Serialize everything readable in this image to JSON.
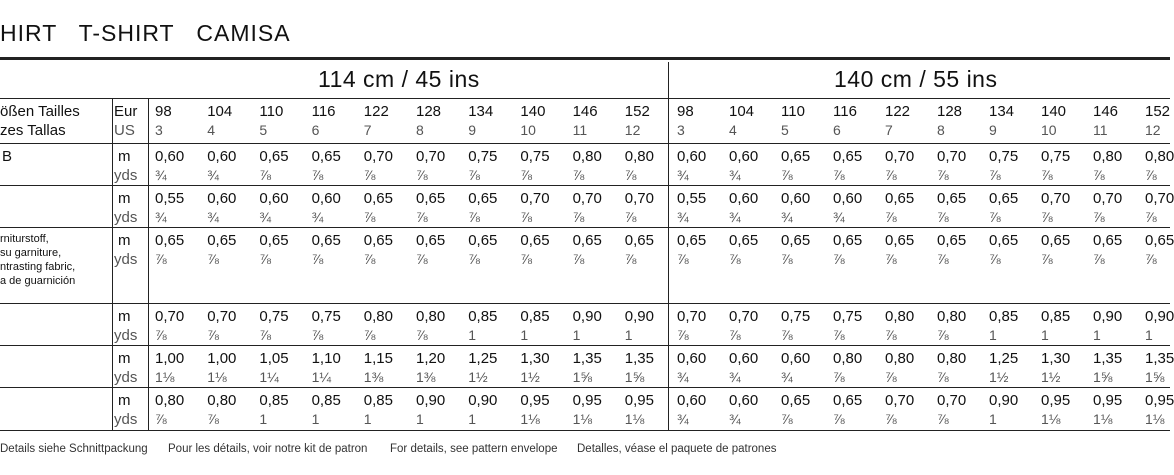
{
  "header": {
    "title": "HIRT   T-SHIRT   CAMISA"
  },
  "table": {
    "groups": [
      "114 cm / 45 ins",
      "140 cm / 55 ins"
    ],
    "size_label": [
      "ößen Tailles",
      "zes Tallas"
    ],
    "size_units": [
      "Eur",
      "US"
    ],
    "eur": [
      "98",
      "104",
      "110",
      "116",
      "122",
      "128",
      "134",
      "140",
      "146",
      "152",
      "98",
      "104",
      "110",
      "116",
      "122",
      "128",
      "134",
      "140",
      "146",
      "152"
    ],
    "us": [
      "3",
      "4",
      "5",
      "6",
      "7",
      "8",
      "9",
      "10",
      "11",
      "12",
      "3",
      "4",
      "5",
      "6",
      "7",
      "8",
      "9",
      "10",
      "11",
      "12"
    ],
    "rows": [
      {
        "label": [
          "B"
        ],
        "units": [
          "m",
          "yds"
        ],
        "values": [
          [
            "0,60",
            "0,60",
            "0,65",
            "0,65",
            "0,70",
            "0,70",
            "0,75",
            "0,75",
            "0,80",
            "0,80",
            "0,60",
            "0,60",
            "0,65",
            "0,65",
            "0,70",
            "0,70",
            "0,75",
            "0,75",
            "0,80",
            "0,80"
          ],
          [
            "¾",
            "¾",
            "⅞",
            "⅞",
            "⅞",
            "⅞",
            "⅞",
            "⅞",
            "⅞",
            "⅞",
            "¾",
            "¾",
            "⅞",
            "⅞",
            "⅞",
            "⅞",
            "⅞",
            "⅞",
            "⅞",
            "⅞"
          ]
        ]
      },
      {
        "label": [],
        "units": [
          "m",
          "yds"
        ],
        "values": [
          [
            "0,55",
            "0,60",
            "0,60",
            "0,60",
            "0,65",
            "0,65",
            "0,65",
            "0,70",
            "0,70",
            "0,70",
            "0,55",
            "0,60",
            "0,60",
            "0,60",
            "0,65",
            "0,65",
            "0,65",
            "0,70",
            "0,70",
            "0,70"
          ],
          [
            "¾",
            "¾",
            "¾",
            "¾",
            "⅞",
            "⅞",
            "⅞",
            "⅞",
            "⅞",
            "⅞",
            "¾",
            "¾",
            "¾",
            "¾",
            "⅞",
            "⅞",
            "⅞",
            "⅞",
            "⅞",
            "⅞"
          ]
        ]
      },
      {
        "label": [
          "rniturstoff,",
          "su garniture,",
          "ntrasting fabric,",
          "a de guarnición"
        ],
        "units": [
          "m",
          "yds"
        ],
        "values": [
          [
            "0,65",
            "0,65",
            "0,65",
            "0,65",
            "0,65",
            "0,65",
            "0,65",
            "0,65",
            "0,65",
            "0,65",
            "0,65",
            "0,65",
            "0,65",
            "0,65",
            "0,65",
            "0,65",
            "0,65",
            "0,65",
            "0,65",
            "0,65"
          ],
          [
            "⅞",
            "⅞",
            "⅞",
            "⅞",
            "⅞",
            "⅞",
            "⅞",
            "⅞",
            "⅞",
            "⅞",
            "⅞",
            "⅞",
            "⅞",
            "⅞",
            "⅞",
            "⅞",
            "⅞",
            "⅞",
            "⅞",
            "⅞"
          ]
        ]
      },
      {
        "label": [],
        "units": [
          "m",
          "yds"
        ],
        "values": [
          [
            "0,70",
            "0,70",
            "0,75",
            "0,75",
            "0,80",
            "0,80",
            "0,85",
            "0,85",
            "0,90",
            "0,90",
            "0,70",
            "0,70",
            "0,75",
            "0,75",
            "0,80",
            "0,80",
            "0,85",
            "0,85",
            "0,90",
            "0,90"
          ],
          [
            "⅞",
            "⅞",
            "⅞",
            "⅞",
            "⅞",
            "⅞",
            "1",
            "1",
            "1",
            "1",
            "⅞",
            "⅞",
            "⅞",
            "⅞",
            "⅞",
            "⅞",
            "1",
            "1",
            "1",
            "1"
          ]
        ]
      },
      {
        "label": [],
        "units": [
          "m",
          "yds"
        ],
        "values": [
          [
            "1,00",
            "1,00",
            "1,05",
            "1,10",
            "1,15",
            "1,20",
            "1,25",
            "1,30",
            "1,35",
            "1,35",
            "0,60",
            "0,60",
            "0,60",
            "0,80",
            "0,80",
            "0,80",
            "1,25",
            "1,30",
            "1,35",
            "1,35"
          ],
          [
            "1⅛",
            "1⅛",
            "1¼",
            "1¼",
            "1⅜",
            "1⅜",
            "1½",
            "1½",
            "1⅝",
            "1⅝",
            "¾",
            "¾",
            "¾",
            "⅞",
            "⅞",
            "⅞",
            "1½",
            "1½",
            "1⅝",
            "1⅝"
          ]
        ]
      },
      {
        "label": [],
        "units": [
          "m",
          "yds"
        ],
        "values": [
          [
            "0,80",
            "0,80",
            "0,85",
            "0,85",
            "0,85",
            "0,90",
            "0,90",
            "0,95",
            "0,95",
            "0,95",
            "0,60",
            "0,60",
            "0,65",
            "0,65",
            "0,70",
            "0,70",
            "0,90",
            "0,95",
            "0,95",
            "0,95"
          ],
          [
            "⅞",
            "⅞",
            "1",
            "1",
            "1",
            "1",
            "1",
            "1⅛",
            "1⅛",
            "1⅛",
            "¾",
            "¾",
            "⅞",
            "⅞",
            "⅞",
            "⅞",
            "1",
            "1⅛",
            "1⅛",
            "1⅛"
          ]
        ]
      }
    ]
  },
  "footer": [
    "Details siehe Schnittpackung",
    "Pour les détails, voir notre kit de patron",
    "For details, see pattern envelope",
    "Detalles, véase el paquete de patrones"
  ]
}
